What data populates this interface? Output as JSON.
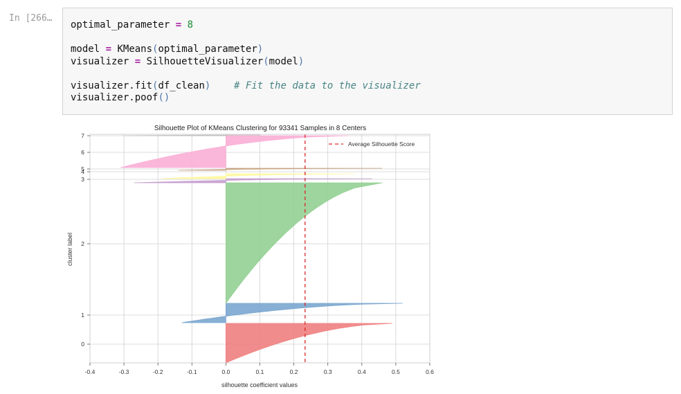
{
  "cell": {
    "prompt": "In [266…",
    "code": {
      "l1_var": "optimal_parameter",
      "l1_op": "=",
      "l1_val": "8",
      "l3_var": "model",
      "l3_op": "=",
      "l3_fn": "KMeans",
      "l3_open": "(",
      "l3_arg": "optimal_parameter",
      "l3_close": ")",
      "l4_var": "visualizer",
      "l4_op": "=",
      "l4_fn": "SilhouetteVisualizer",
      "l4_open": "(",
      "l4_arg": "model",
      "l4_close": ")",
      "l6_code": "visualizer.fit",
      "l6_open": "(",
      "l6_arg": "df_clean",
      "l6_close": ")",
      "l6_comment": "# Fit the data to the visualizer",
      "l7_code": "visualizer.poof",
      "l7_parens": "()"
    }
  },
  "chart_data": {
    "type": "area",
    "title": "Silhouette Plot of KMeans Clustering for 93341 Samples in 8 Centers",
    "xlabel": "silhouette coefficient values",
    "ylabel": "cluster label",
    "xlim": [
      -0.4,
      0.6
    ],
    "xticks": [
      -0.4,
      -0.3,
      -0.2,
      -0.1,
      0.0,
      0.1,
      0.2,
      0.3,
      0.4,
      0.5,
      0.6
    ],
    "xtick_labels": [
      "-0.4",
      "-0.3",
      "-0.2",
      "-0.1",
      "0.0",
      "0.1",
      "0.2",
      "0.3",
      "0.4",
      "0.5",
      "0.6"
    ],
    "ytick_labels": [
      "0",
      "1",
      "2",
      "3",
      "4",
      "5",
      "6",
      "7"
    ],
    "grid": true,
    "legend": {
      "position": "top-right",
      "entries": [
        "Average Silhouette Score"
      ]
    },
    "average_silhouette_score": 0.233,
    "clusters": [
      {
        "label": "0",
        "color": "#f08080",
        "min": 0.0,
        "max": 0.49
      },
      {
        "label": "1",
        "color": "#7aa7cf",
        "min": -0.13,
        "max": 0.52
      },
      {
        "label": "2",
        "color": "#94d094",
        "min": 0.0,
        "max": 0.46
      },
      {
        "label": "3",
        "color": "#c59fcf",
        "min": -0.27,
        "max": 0.43
      },
      {
        "label": "4",
        "color": "#fff8a0",
        "min": -0.19,
        "max": 0.38
      },
      {
        "label": "5",
        "color": "#c8a380",
        "min": -0.14,
        "max": 0.46
      },
      {
        "label": "6",
        "color": "#fbafd6",
        "min": -0.31,
        "max": 0.36
      },
      {
        "label": "7",
        "color": "#bfbfbf",
        "min": -0.3,
        "max": 0.1
      }
    ],
    "colors": {
      "average_line": "#d62728",
      "grid": "#d0d0d0"
    }
  }
}
